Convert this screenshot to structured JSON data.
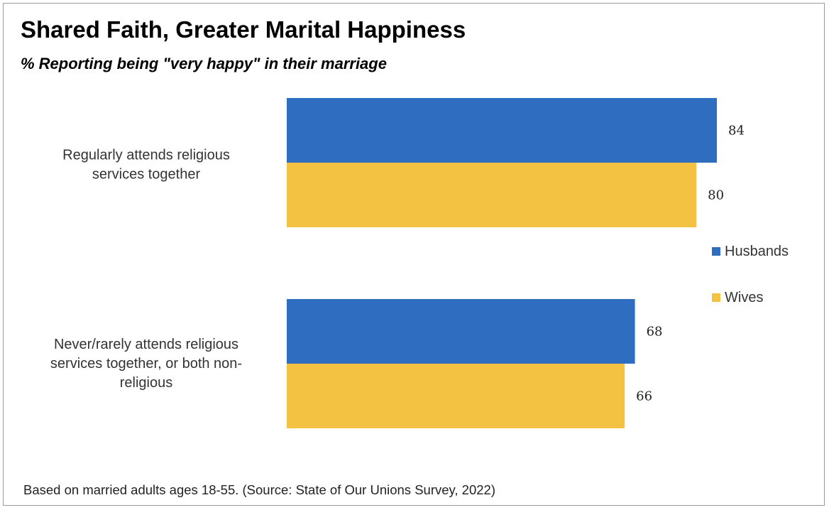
{
  "title": "Shared Faith, Greater Marital Happiness",
  "subtitle": "% Reporting being \"very happy\" in their marriage",
  "footer": "Based on married adults ages 18-55. (Source: State of Our Unions Survey, 2022)",
  "colors": {
    "husbands": "#2E6DBF",
    "wives": "#F4C242"
  },
  "chart_data": {
    "type": "bar",
    "orientation": "horizontal",
    "categories": [
      [
        "Regularly attends religious",
        "services together"
      ],
      [
        "Never/rarely attends religious",
        "services together, or both non-",
        "religious"
      ]
    ],
    "series": [
      {
        "name": "Husbands",
        "values": [
          84,
          68
        ]
      },
      {
        "name": "Wives",
        "values": [
          80,
          66
        ]
      }
    ],
    "xlim": [
      0,
      100
    ],
    "grid": false,
    "legend": "right",
    "data_labels": true
  }
}
